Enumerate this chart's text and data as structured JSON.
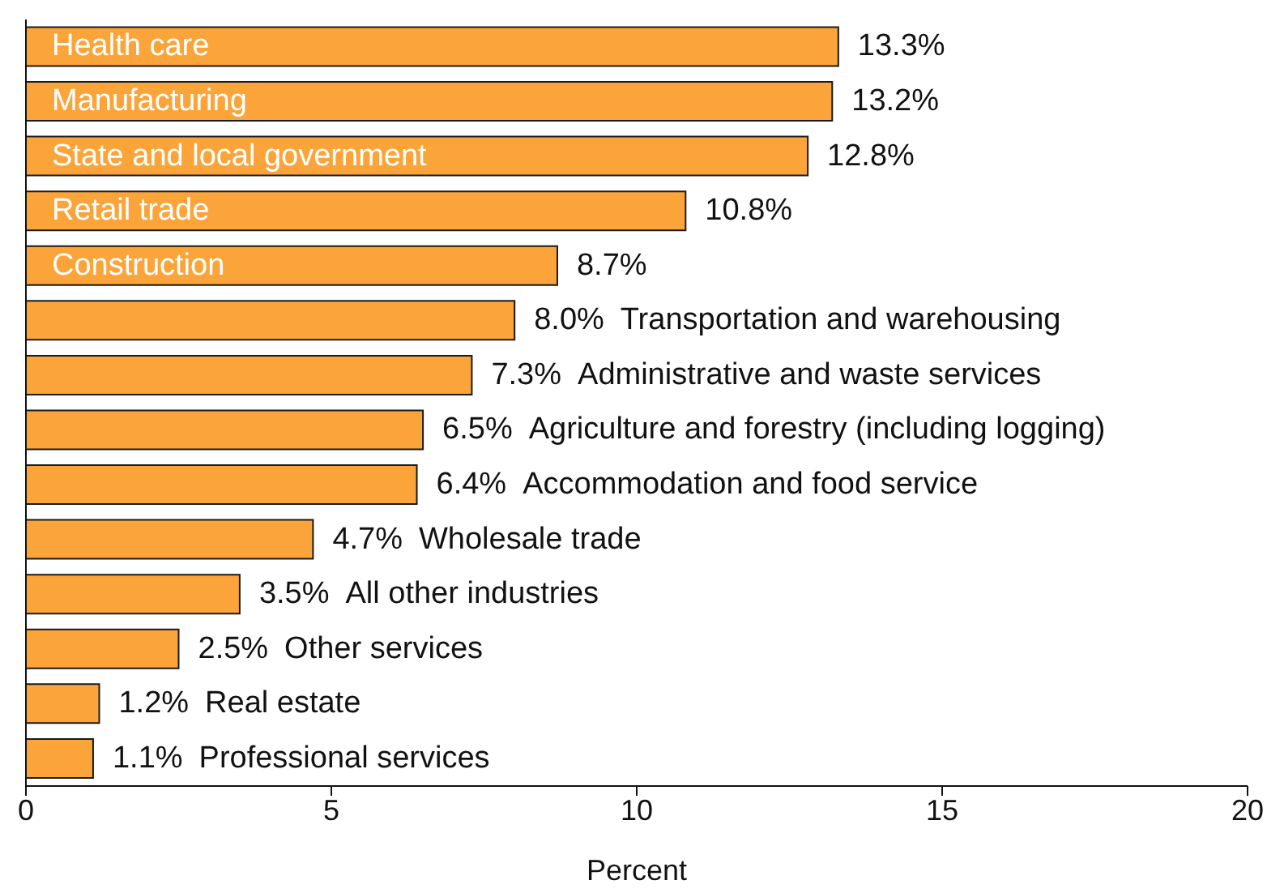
{
  "chart_data": {
    "type": "bar",
    "orientation": "horizontal",
    "xlabel": "Percent",
    "categories": [
      "Health care",
      "Manufacturing",
      "State and local government",
      "Retail trade",
      "Construction",
      "Transportation and warehousing",
      "Administrative and waste services",
      "Agriculture and forestry (including logging)",
      "Accommodation and food service",
      "Wholesale trade",
      "All other industries",
      "Other services",
      "Real estate",
      "Professional services"
    ],
    "values": [
      13.3,
      13.2,
      12.8,
      10.8,
      8.7,
      8.0,
      7.3,
      6.5,
      6.4,
      4.7,
      3.5,
      2.5,
      1.2,
      1.1
    ],
    "value_labels": [
      "13.3%",
      "13.2%",
      "12.8%",
      "10.8%",
      "8.7%",
      "8.0%",
      "7.3%",
      "6.5%",
      "6.4%",
      "4.7%",
      "3.5%",
      "2.5%",
      "1.2%",
      "1.1%"
    ],
    "color": "#fba43a",
    "xlim": [
      0,
      20
    ],
    "xticks": [
      0,
      5,
      10,
      15,
      20
    ],
    "grid": false
  }
}
